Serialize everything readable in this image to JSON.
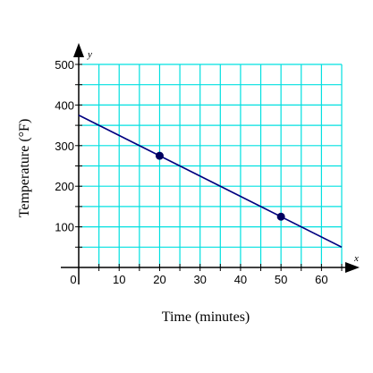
{
  "chart_data": {
    "type": "line",
    "xlabel": "Time (minutes)",
    "ylabel": "Temperature (°F)",
    "x_axis_letter": "x",
    "y_axis_letter": "y",
    "xlim": [
      0,
      65
    ],
    "ylim": [
      0,
      500
    ],
    "x_grid_step": 5,
    "y_grid_step": 50,
    "x_ticks": [
      10,
      20,
      30,
      40,
      50,
      60
    ],
    "y_ticks": [
      100,
      200,
      300,
      400,
      500
    ],
    "origin_label": "0",
    "grid": true,
    "grid_color": "#00e0e0",
    "line_color": "#000080",
    "point_color": "#000060",
    "line": {
      "x": [
        0,
        65
      ],
      "y": [
        375,
        50
      ]
    },
    "points": [
      {
        "x": 20,
        "y": 275
      },
      {
        "x": 50,
        "y": 125
      }
    ]
  }
}
